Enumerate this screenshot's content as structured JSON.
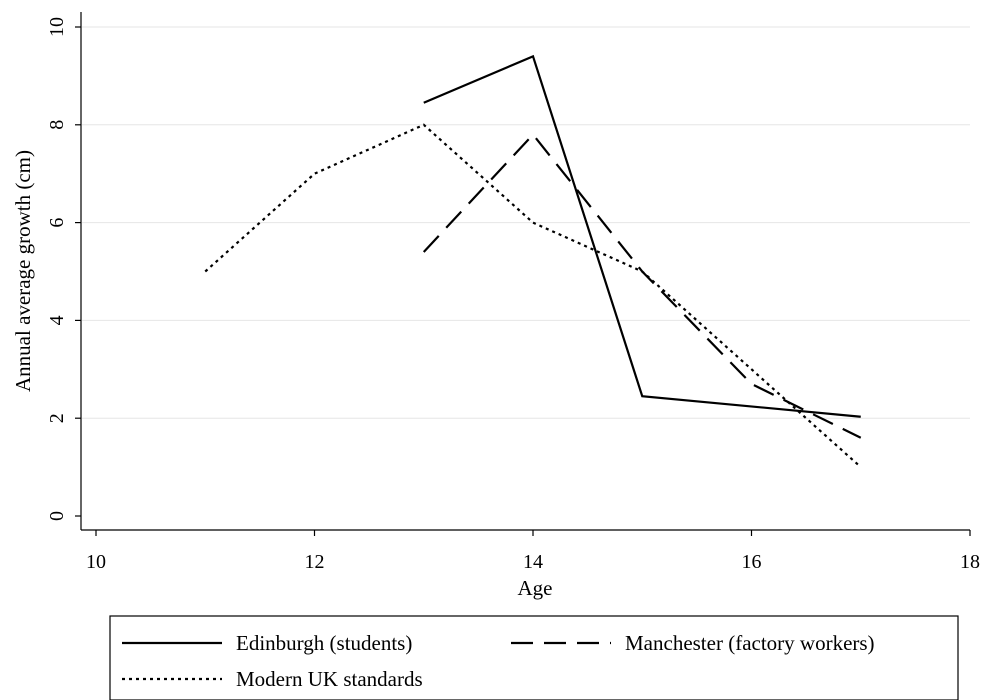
{
  "chart_data": {
    "type": "line",
    "xlabel": "Age",
    "ylabel": "Annual average growth (cm)",
    "xlim": [
      10,
      18
    ],
    "ylim": [
      0,
      10
    ],
    "xticks": [
      10,
      12,
      14,
      16,
      18
    ],
    "yticks": [
      0,
      2,
      4,
      6,
      8,
      10
    ],
    "grid": "horizontal",
    "legend_position": "bottom",
    "series": [
      {
        "name": "Edinburgh (students)",
        "style": "solid",
        "x": [
          13,
          14,
          15,
          17
        ],
        "y": [
          8.45,
          9.4,
          2.45,
          2.03
        ]
      },
      {
        "name": "Manchester (factory workers)",
        "style": "dashed",
        "x": [
          13,
          14,
          15,
          16,
          17
        ],
        "y": [
          5.4,
          7.8,
          5.0,
          2.7,
          1.6
        ]
      },
      {
        "name": "Modern UK standards",
        "style": "dotted",
        "x": [
          11,
          12,
          13,
          14,
          15,
          17
        ],
        "y": [
          5.0,
          7.0,
          8.0,
          6.0,
          5.0,
          1.0
        ]
      }
    ]
  }
}
